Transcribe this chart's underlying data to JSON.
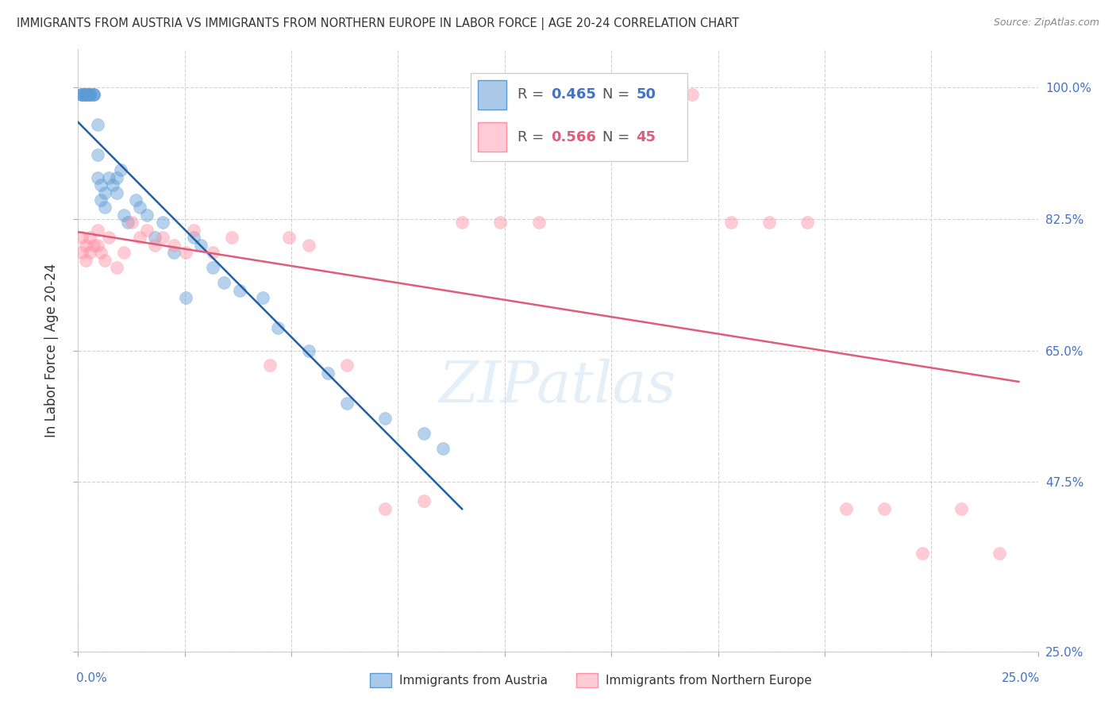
{
  "title": "IMMIGRANTS FROM AUSTRIA VS IMMIGRANTS FROM NORTHERN EUROPE IN LABOR FORCE | AGE 20-24 CORRELATION CHART",
  "source": "Source: ZipAtlas.com",
  "ylabel": "In Labor Force | Age 20-24",
  "xlim": [
    0.0,
    0.25
  ],
  "ylim": [
    0.25,
    1.05
  ],
  "ytick_labels": [
    "25.0%",
    "47.5%",
    "65.0%",
    "82.5%",
    "100.0%"
  ],
  "ytick_values": [
    0.25,
    0.475,
    0.65,
    0.825,
    1.0
  ],
  "grid_color": "#cccccc",
  "background_color": "#ffffff",
  "blue_color": "#5b9bd5",
  "pink_color": "#ff8fa3",
  "blue_line_color": "#1f5fa6",
  "pink_line_color": "#e05c7a",
  "blue_r": "0.465",
  "blue_n": "50",
  "pink_r": "0.566",
  "pink_n": "45",
  "austria_x": [
    0.001,
    0.001,
    0.001,
    0.001,
    0.002,
    0.002,
    0.002,
    0.002,
    0.002,
    0.003,
    0.003,
    0.003,
    0.003,
    0.004,
    0.004,
    0.004,
    0.005,
    0.005,
    0.005,
    0.006,
    0.006,
    0.007,
    0.007,
    0.008,
    0.009,
    0.01,
    0.01,
    0.011,
    0.012,
    0.013,
    0.015,
    0.016,
    0.018,
    0.02,
    0.022,
    0.025,
    0.028,
    0.03,
    0.032,
    0.035,
    0.038,
    0.042,
    0.048,
    0.052,
    0.06,
    0.065,
    0.07,
    0.08,
    0.09,
    0.095
  ],
  "austria_y": [
    0.99,
    0.99,
    0.99,
    0.99,
    0.99,
    0.99,
    0.99,
    0.99,
    0.99,
    0.99,
    0.99,
    0.99,
    0.99,
    0.99,
    0.99,
    0.99,
    0.95,
    0.91,
    0.88,
    0.87,
    0.85,
    0.86,
    0.84,
    0.88,
    0.87,
    0.88,
    0.86,
    0.89,
    0.83,
    0.82,
    0.85,
    0.84,
    0.83,
    0.8,
    0.82,
    0.78,
    0.72,
    0.8,
    0.79,
    0.76,
    0.74,
    0.73,
    0.72,
    0.68,
    0.65,
    0.62,
    0.58,
    0.56,
    0.54,
    0.52
  ],
  "northern_x": [
    0.001,
    0.001,
    0.002,
    0.002,
    0.003,
    0.003,
    0.004,
    0.005,
    0.005,
    0.006,
    0.007,
    0.008,
    0.01,
    0.012,
    0.014,
    0.016,
    0.018,
    0.02,
    0.022,
    0.025,
    0.028,
    0.03,
    0.035,
    0.04,
    0.05,
    0.055,
    0.06,
    0.07,
    0.08,
    0.09,
    0.1,
    0.11,
    0.12,
    0.13,
    0.14,
    0.15,
    0.16,
    0.17,
    0.18,
    0.19,
    0.2,
    0.21,
    0.22,
    0.23,
    0.24
  ],
  "northern_y": [
    0.8,
    0.78,
    0.79,
    0.77,
    0.8,
    0.78,
    0.79,
    0.81,
    0.79,
    0.78,
    0.77,
    0.8,
    0.76,
    0.78,
    0.82,
    0.8,
    0.81,
    0.79,
    0.8,
    0.79,
    0.78,
    0.81,
    0.78,
    0.8,
    0.63,
    0.8,
    0.79,
    0.63,
    0.44,
    0.45,
    0.82,
    0.82,
    0.82,
    0.99,
    0.99,
    0.99,
    0.99,
    0.82,
    0.82,
    0.82,
    0.44,
    0.44,
    0.38,
    0.44,
    0.38
  ]
}
